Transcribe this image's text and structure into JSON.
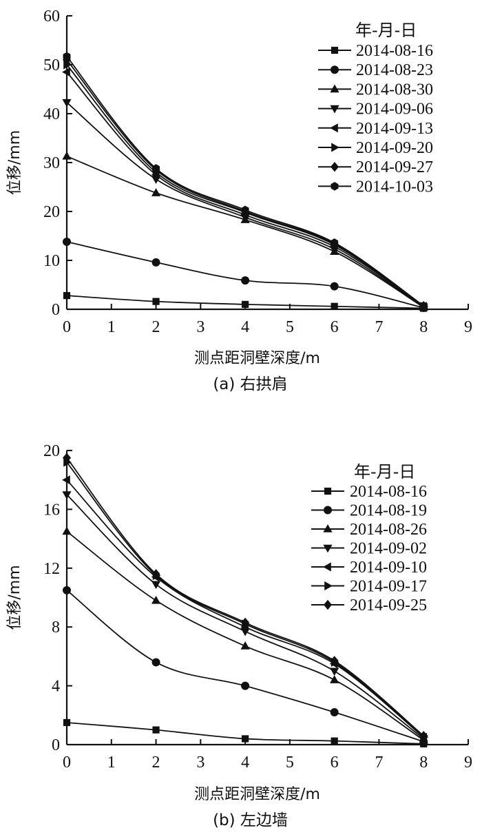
{
  "chart_data": [
    {
      "type": "line",
      "caption": "(a) 右拱肩",
      "xlabel": "测点距洞壁深度/m",
      "ylabel": "位移/mm",
      "xlim": [
        0,
        9
      ],
      "ylim": [
        0,
        60
      ],
      "xticks": [
        "0",
        "1",
        "2",
        "3",
        "4",
        "5",
        "6",
        "7",
        "8",
        "9"
      ],
      "yticks": [
        "0",
        "10",
        "20",
        "30",
        "40",
        "50",
        "60"
      ],
      "legend_title": "年-月-日",
      "legend_position": "top-right",
      "grid": false,
      "x": [
        0,
        2,
        4,
        6,
        8
      ],
      "series": [
        {
          "name": "2014-08-16",
          "marker": "square",
          "values": [
            2.8,
            1.6,
            1.0,
            0.6,
            0.2
          ]
        },
        {
          "name": "2014-08-23",
          "marker": "circle",
          "values": [
            13.8,
            9.6,
            5.9,
            4.7,
            0.3
          ]
        },
        {
          "name": "2014-08-30",
          "marker": "triangle-up",
          "values": [
            31.3,
            23.8,
            18.3,
            11.8,
            0.4
          ]
        },
        {
          "name": "2014-09-06",
          "marker": "triangle-down",
          "values": [
            42.3,
            26.6,
            18.8,
            12.3,
            0.5
          ]
        },
        {
          "name": "2014-09-13",
          "marker": "triangle-left",
          "values": [
            48.5,
            27.5,
            19.3,
            12.8,
            0.6
          ]
        },
        {
          "name": "2014-09-20",
          "marker": "triangle-right",
          "values": [
            50.0,
            28.0,
            19.8,
            13.2,
            0.6
          ]
        },
        {
          "name": "2014-09-27",
          "marker": "diamond",
          "values": [
            51.0,
            28.5,
            20.0,
            13.4,
            0.7
          ]
        },
        {
          "name": "2014-10-03",
          "marker": "hexagon",
          "values": [
            51.7,
            28.8,
            20.3,
            13.6,
            0.7
          ]
        }
      ]
    },
    {
      "type": "line",
      "caption": "(b) 左边墙",
      "xlabel": "测点距洞壁深度/m",
      "ylabel": "位移/mm",
      "xlim": [
        0,
        9
      ],
      "ylim": [
        0,
        20
      ],
      "xticks": [
        "0",
        "1",
        "2",
        "3",
        "4",
        "5",
        "6",
        "7",
        "8",
        "9"
      ],
      "yticks": [
        "0",
        "4",
        "8",
        "12",
        "16",
        "20"
      ],
      "legend_title": "年-月-日",
      "legend_position": "top-right",
      "grid": false,
      "x": [
        0,
        2,
        4,
        6,
        8
      ],
      "series": [
        {
          "name": "2014-08-16",
          "marker": "square",
          "values": [
            1.5,
            1.0,
            0.4,
            0.25,
            0.05
          ]
        },
        {
          "name": "2014-08-19",
          "marker": "circle",
          "values": [
            10.5,
            5.6,
            4.0,
            2.2,
            0.2
          ]
        },
        {
          "name": "2014-08-26",
          "marker": "triangle-up",
          "values": [
            14.5,
            9.8,
            6.7,
            4.4,
            0.3
          ]
        },
        {
          "name": "2014-09-02",
          "marker": "triangle-down",
          "values": [
            17.0,
            10.9,
            7.7,
            5.0,
            0.4
          ]
        },
        {
          "name": "2014-09-10",
          "marker": "triangle-left",
          "values": [
            18.0,
            11.4,
            8.0,
            5.5,
            0.5
          ]
        },
        {
          "name": "2014-09-17",
          "marker": "triangle-right",
          "values": [
            19.2,
            11.5,
            8.2,
            5.6,
            0.5
          ]
        },
        {
          "name": "2014-09-25",
          "marker": "diamond",
          "values": [
            19.5,
            11.6,
            8.3,
            5.7,
            0.6
          ]
        }
      ]
    }
  ]
}
